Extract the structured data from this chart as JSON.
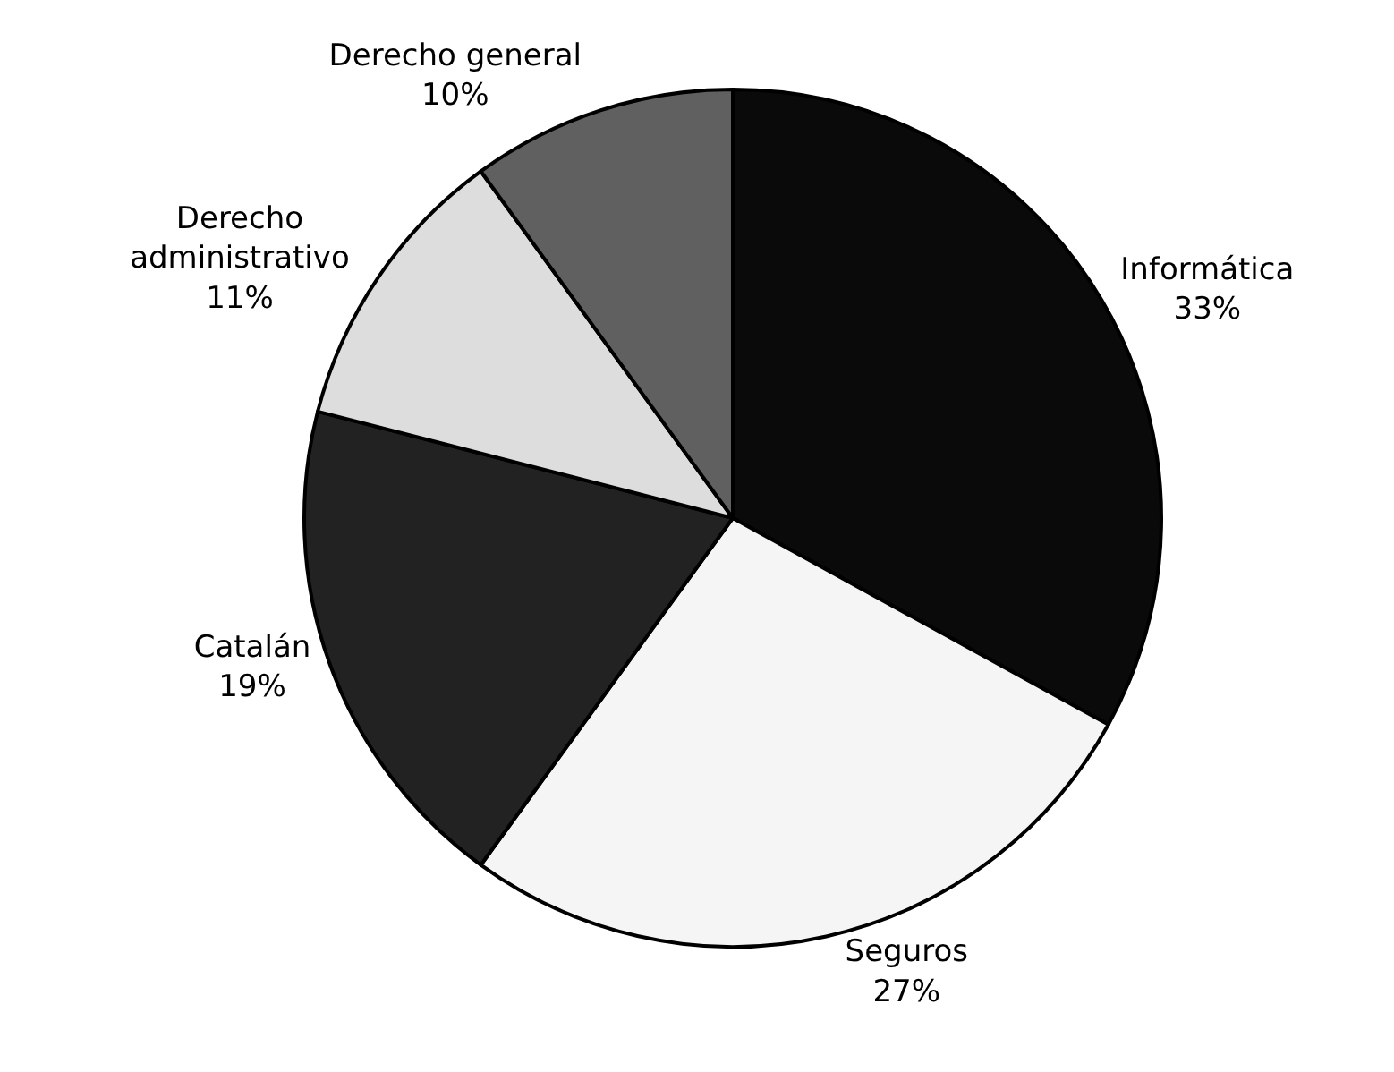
{
  "chart_data": {
    "type": "pie",
    "categories": [
      "Informática",
      "Seguros",
      "Catalán",
      "Derecho administrativo",
      "Derecho general"
    ],
    "values": [
      33,
      27,
      19,
      11,
      10
    ],
    "colors": [
      "#0a0a0a",
      "#f5f5f5",
      "#222222",
      "#dddddd",
      "#606060"
    ],
    "value_labels": [
      "33%",
      "27%",
      "19%",
      "11%",
      "10%"
    ],
    "legend": false
  }
}
